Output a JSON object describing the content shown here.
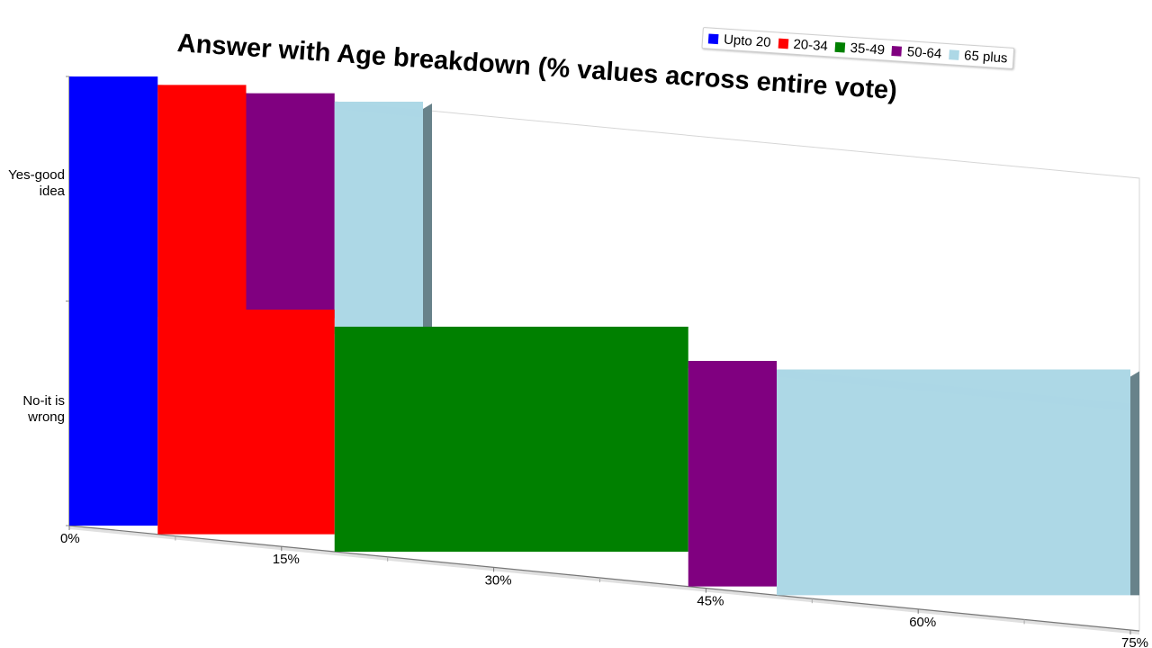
{
  "chart_data": {
    "type": "bar",
    "orientation": "horizontal",
    "stacked": true,
    "title": "Answer with Age breakdown (% values across entire vote)",
    "categories": [
      "Yes-good idea",
      "No-it is wrong"
    ],
    "category_lines": [
      [
        "Yes-good",
        "idea"
      ],
      [
        "No-it is",
        "wrong"
      ]
    ],
    "series": [
      {
        "name": "Upto 20",
        "color": "#0000ff",
        "values": [
          6.25,
          6.25
        ]
      },
      {
        "name": "20-34",
        "color": "#ff0000",
        "values": [
          6.25,
          12.5
        ]
      },
      {
        "name": "35-49",
        "color": "#008000",
        "values": [
          0,
          25
        ]
      },
      {
        "name": "50-64",
        "color": "#800080",
        "values": [
          6.25,
          6.25
        ]
      },
      {
        "name": "65 plus",
        "color": "#add8e6",
        "values": [
          6.25,
          25
        ]
      }
    ],
    "xlim": [
      0,
      75
    ],
    "x_ticks": [
      "0%",
      "15%",
      "30%",
      "45%",
      "60%",
      "75%"
    ],
    "legend_position": "top-right",
    "grid": false
  }
}
